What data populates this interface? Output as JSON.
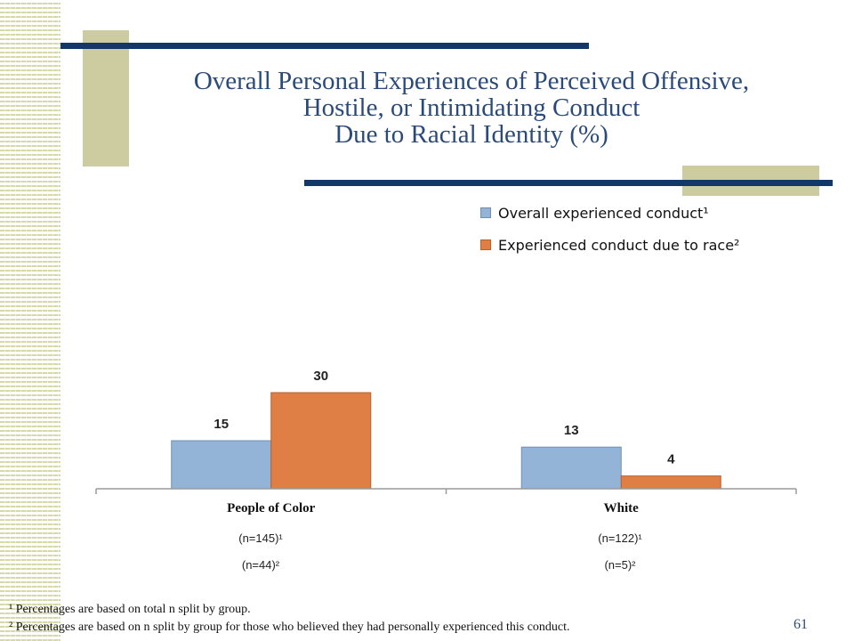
{
  "title": {
    "line1": "Overall Personal Experiences of Perceived Offensive,",
    "line2": "Hostile, or Intimidating Conduct",
    "line3": "Due to Racial Identity (%)"
  },
  "colors": {
    "title": "#2a4a7a",
    "rule": "#12386a",
    "deco": "#ccccA0",
    "series_blue": "#93b3d7",
    "series_orange": "#e07f45"
  },
  "chart_data": {
    "type": "bar",
    "categories": [
      "People of Color",
      "White"
    ],
    "series": [
      {
        "name": "Overall experienced conduct¹",
        "values": [
          15,
          13
        ]
      },
      {
        "name": "Experienced conduct due to race²",
        "values": [
          30,
          4
        ]
      }
    ],
    "title": "",
    "xlabel": "",
    "ylabel": "",
    "ylim": [
      0,
      30
    ],
    "grid": false,
    "legend": "top-right",
    "data_labels": true
  },
  "group_notes": [
    {
      "overall_n": "(n=145)¹",
      "race_n": "(n=44)²"
    },
    {
      "overall_n": "(n=122)¹",
      "race_n": "(n=5)²"
    }
  ],
  "footnotes": {
    "f1": "¹ Percentages are based on total n split by group.",
    "f2": "² Percentages are based on n split by group for those who believed they had  personally experienced this conduct."
  },
  "page_number": "61"
}
